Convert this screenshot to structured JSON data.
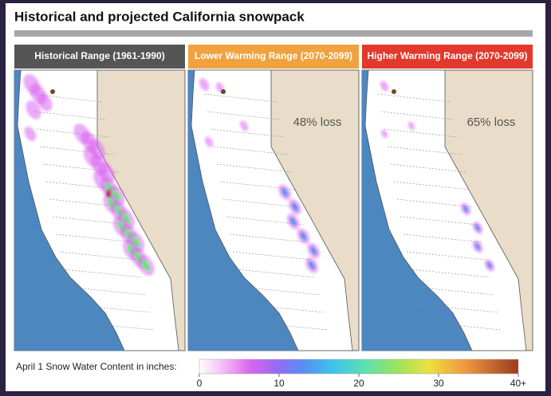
{
  "title": "Historical and projected California snowpack",
  "panels": [
    {
      "header": "Historical Range (1961-1990)"
    },
    {
      "header": "Lower Warming Range (2070-2099)",
      "annotation": "48% loss"
    },
    {
      "header": "Higher Warming Range (2070-2099)",
      "annotation": "65% loss"
    }
  ],
  "legend": {
    "label": "April 1 Snow Water Content in inches:",
    "range": [
      0,
      40
    ],
    "ticks": [
      0,
      10,
      20,
      30,
      {
        "value": 40,
        "label": "40+"
      }
    ]
  }
}
